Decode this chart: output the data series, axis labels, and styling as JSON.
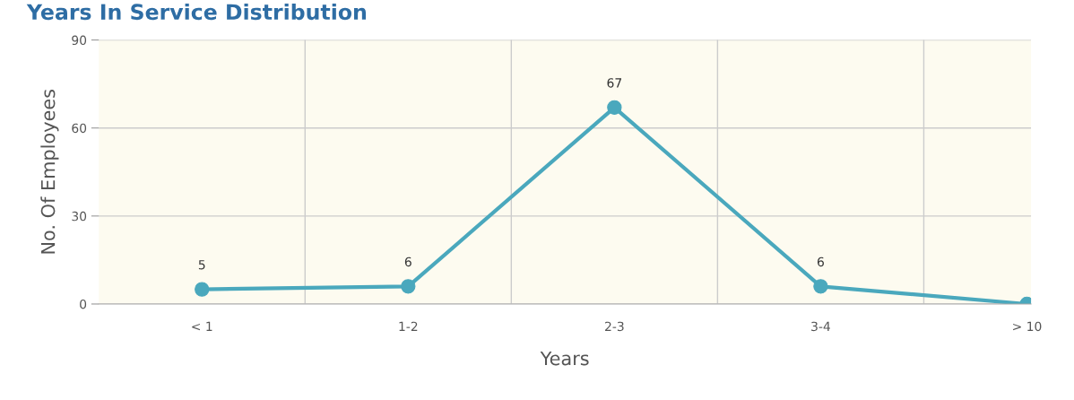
{
  "chart_data": {
    "type": "line",
    "title": "Years In Service Distribution",
    "xlabel": "Years",
    "ylabel": "No. Of Employees",
    "categories": [
      "< 1",
      "1-2",
      "2-3",
      "3-4",
      "> 10"
    ],
    "series": [
      {
        "color": "#4aa8bd",
        "values": [
          5,
          6,
          67,
          6,
          0
        ],
        "value_labels": [
          "5",
          "6",
          "67",
          "6",
          null
        ]
      }
    ],
    "ylim": [
      0,
      90
    ],
    "yticks": [
      0,
      30,
      60,
      90
    ],
    "grid": true,
    "marker": "circle",
    "line_style": "solid",
    "legend": false
  }
}
